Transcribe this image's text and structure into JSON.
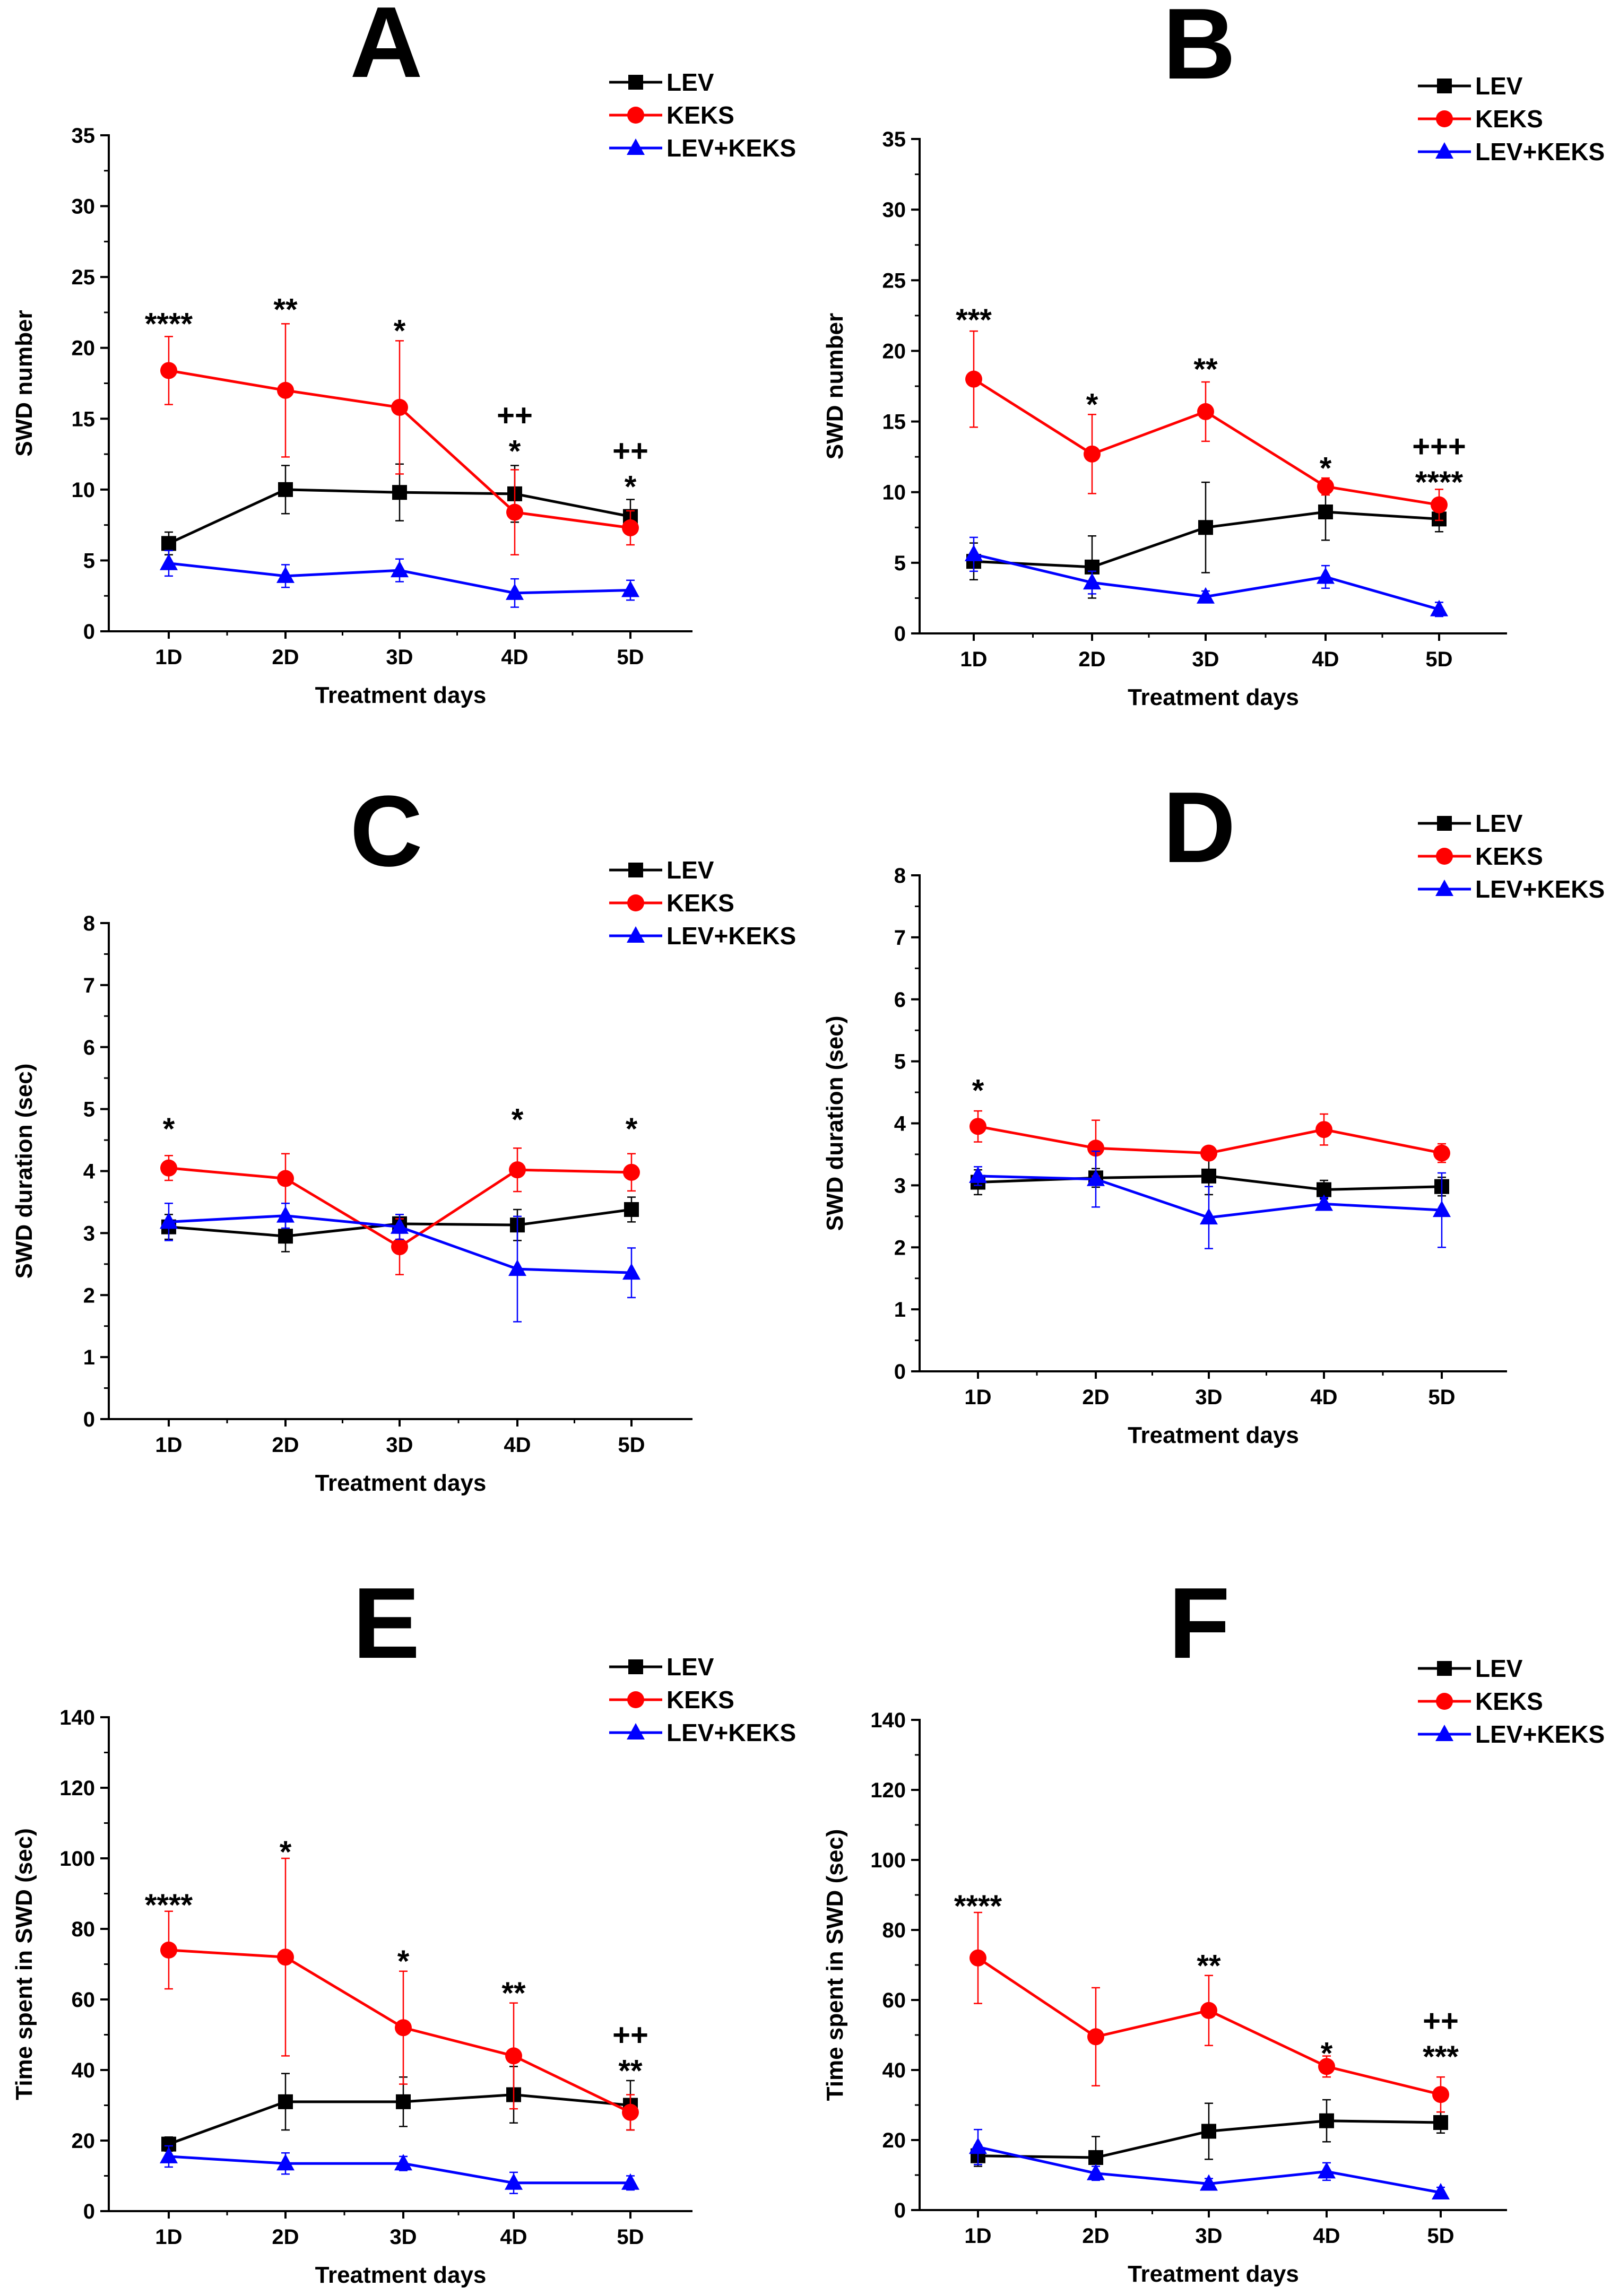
{
  "figure": {
    "description_title": ""
  },
  "legend_labels": [
    "LEV",
    "KEKS",
    "LEV+KEKS"
  ],
  "series_colors": {
    "LEV": "#000000",
    "KEKS": "#ff0000",
    "LEV+KEKS": "#0000ff"
  },
  "series_markers": {
    "LEV": "square",
    "KEKS": "circle",
    "LEV+KEKS": "triangle"
  },
  "chart_data": [
    {
      "panel": "A",
      "type": "line",
      "xlabel": "Treatment days",
      "ylabel": "SWD number",
      "categories": [
        "1D",
        "2D",
        "3D",
        "4D",
        "5D"
      ],
      "ylim": [
        0,
        35
      ],
      "yticks": [
        0,
        5,
        10,
        15,
        20,
        25,
        30,
        35
      ],
      "series": [
        {
          "name": "LEV",
          "values": [
            6.2,
            10.0,
            9.8,
            9.7,
            8.1
          ],
          "errors": [
            0.8,
            1.7,
            2.0,
            2.0,
            1.2
          ]
        },
        {
          "name": "KEKS",
          "values": [
            18.4,
            17.0,
            15.8,
            8.4,
            7.3
          ],
          "errors": [
            2.4,
            4.7,
            4.7,
            3.0,
            1.2
          ]
        },
        {
          "name": "LEV+KEKS",
          "values": [
            4.8,
            3.9,
            4.3,
            2.7,
            2.9
          ],
          "errors": [
            0.9,
            0.8,
            0.8,
            1.0,
            0.7
          ]
        }
      ],
      "annotations": [
        {
          "x": "1D",
          "lines": [
            "****"
          ],
          "y": 22
        },
        {
          "x": "2D",
          "lines": [
            "**"
          ],
          "y": 23
        },
        {
          "x": "3D",
          "lines": [
            "*"
          ],
          "y": 21.5
        },
        {
          "x": "4D",
          "lines": [
            "++",
            "*"
          ],
          "y": 13
        },
        {
          "x": "5D",
          "lines": [
            "++",
            "*"
          ],
          "y": 10.5
        }
      ]
    },
    {
      "panel": "B",
      "type": "line",
      "xlabel": "Treatment days",
      "ylabel": "SWD number",
      "categories": [
        "1D",
        "2D",
        "3D",
        "4D",
        "5D"
      ],
      "ylim": [
        0,
        35
      ],
      "yticks": [
        0,
        5,
        10,
        15,
        20,
        25,
        30,
        35
      ],
      "series": [
        {
          "name": "LEV",
          "values": [
            5.1,
            4.7,
            7.5,
            8.6,
            8.1
          ],
          "errors": [
            1.3,
            2.2,
            3.2,
            2.0,
            0.9
          ]
        },
        {
          "name": "KEKS",
          "values": [
            18.0,
            12.7,
            15.7,
            10.4,
            9.1
          ],
          "errors": [
            3.4,
            2.8,
            2.1,
            0.6,
            1.1
          ]
        },
        {
          "name": "LEV+KEKS",
          "values": [
            5.6,
            3.6,
            2.6,
            4.0,
            1.7
          ],
          "errors": [
            1.2,
            0.8,
            0.4,
            0.8,
            0.5
          ]
        }
      ],
      "annotations": [
        {
          "x": "1D",
          "lines": [
            "***"
          ],
          "y": 22.5
        },
        {
          "x": "2D",
          "lines": [
            "*"
          ],
          "y": 16.5
        },
        {
          "x": "3D",
          "lines": [
            "**"
          ],
          "y": 19
        },
        {
          "x": "4D",
          "lines": [
            "*"
          ],
          "y": 12
        },
        {
          "x": "5D",
          "lines": [
            "+++",
            "****"
          ],
          "y": 11
        }
      ]
    },
    {
      "panel": "C",
      "type": "line",
      "xlabel": "Treatment days",
      "ylabel": "SWD duration (sec)",
      "categories": [
        "1D",
        "2D",
        "3D",
        "4D",
        "5D"
      ],
      "ylim": [
        0,
        8
      ],
      "yticks": [
        0,
        1,
        2,
        3,
        4,
        5,
        6,
        7,
        8
      ],
      "series": [
        {
          "name": "LEV",
          "values": [
            3.1,
            2.95,
            3.15,
            3.13,
            3.38
          ],
          "errors": [
            0.2,
            0.25,
            0.15,
            0.25,
            0.2
          ]
        },
        {
          "name": "KEKS",
          "values": [
            4.05,
            3.88,
            2.78,
            4.02,
            3.98
          ],
          "errors": [
            0.2,
            0.4,
            0.45,
            0.35,
            0.3
          ]
        },
        {
          "name": "LEV+KEKS",
          "values": [
            3.18,
            3.28,
            3.1,
            2.42,
            2.36
          ],
          "errors": [
            0.3,
            0.2,
            0.2,
            0.85,
            0.4
          ]
        }
      ],
      "annotations": [
        {
          "x": "1D",
          "lines": [
            "*"
          ],
          "y": 4.75
        },
        {
          "x": "4D",
          "lines": [
            "*"
          ],
          "y": 4.9
        },
        {
          "x": "5D",
          "lines": [
            "*"
          ],
          "y": 4.75
        }
      ]
    },
    {
      "panel": "D",
      "type": "line",
      "xlabel": "Treatment days",
      "ylabel": "SWD duration (sec)",
      "categories": [
        "1D",
        "2D",
        "3D",
        "4D",
        "5D"
      ],
      "ylim": [
        0,
        8
      ],
      "yticks": [
        0,
        1,
        2,
        3,
        4,
        5,
        6,
        7,
        8
      ],
      "series": [
        {
          "name": "LEV",
          "values": [
            3.05,
            3.12,
            3.15,
            2.93,
            2.98
          ],
          "errors": [
            0.2,
            0.15,
            0.3,
            0.15,
            0.15
          ]
        },
        {
          "name": "KEKS",
          "values": [
            3.95,
            3.6,
            3.52,
            3.9,
            3.52
          ],
          "errors": [
            0.25,
            0.45,
            0.1,
            0.25,
            0.15
          ]
        },
        {
          "name": "LEV+KEKS",
          "values": [
            3.15,
            3.1,
            2.48,
            2.7,
            2.6
          ],
          "errors": [
            0.15,
            0.45,
            0.5,
            0.1,
            0.6
          ]
        }
      ],
      "annotations": [
        {
          "x": "1D",
          "lines": [
            "*"
          ],
          "y": 4.6
        }
      ]
    },
    {
      "panel": "E",
      "type": "line",
      "xlabel": "Treatment days",
      "ylabel": "Time spent in SWD (sec)",
      "categories": [
        "1D",
        "2D",
        "3D",
        "4D",
        "5D"
      ],
      "ylim": [
        0,
        140
      ],
      "yticks": [
        0,
        20,
        40,
        60,
        80,
        100,
        120,
        140
      ],
      "series": [
        {
          "name": "LEV",
          "values": [
            19,
            31,
            31,
            33,
            30
          ],
          "errors": [
            2,
            8,
            7,
            8,
            7
          ]
        },
        {
          "name": "KEKS",
          "values": [
            74,
            72,
            52,
            44,
            28
          ],
          "errors": [
            11,
            28,
            16,
            15,
            5
          ]
        },
        {
          "name": "LEV+KEKS",
          "values": [
            15.5,
            13.5,
            13.5,
            8,
            8
          ],
          "errors": [
            3,
            3,
            2,
            3,
            2
          ]
        }
      ],
      "annotations": [
        {
          "x": "1D",
          "lines": [
            "****"
          ],
          "y": 88
        },
        {
          "x": "2D",
          "lines": [
            "*"
          ],
          "y": 103
        },
        {
          "x": "3D",
          "lines": [
            "*"
          ],
          "y": 72
        },
        {
          "x": "4D",
          "lines": [
            "**"
          ],
          "y": 63
        },
        {
          "x": "5D",
          "lines": [
            "++",
            "**"
          ],
          "y": 41
        }
      ]
    },
    {
      "panel": "F",
      "type": "line",
      "xlabel": "Treatment days",
      "ylabel": "Time spent in SWD (sec)",
      "categories": [
        "1D",
        "2D",
        "3D",
        "4D",
        "5D"
      ],
      "ylim": [
        0,
        140
      ],
      "yticks": [
        0,
        20,
        40,
        60,
        80,
        100,
        120,
        140
      ],
      "series": [
        {
          "name": "LEV",
          "values": [
            15.5,
            15,
            22.5,
            25.5,
            25
          ],
          "errors": [
            3,
            6,
            8,
            6,
            3
          ]
        },
        {
          "name": "KEKS",
          "values": [
            72,
            49.5,
            57,
            41,
            33
          ],
          "errors": [
            13,
            14,
            10,
            3,
            5
          ]
        },
        {
          "name": "LEV+KEKS",
          "values": [
            18,
            10.5,
            7.5,
            11,
            5
          ],
          "errors": [
            5,
            2,
            1.5,
            2.5,
            1.5
          ]
        }
      ],
      "annotations": [
        {
          "x": "1D",
          "lines": [
            "****"
          ],
          "y": 88
        },
        {
          "x": "3D",
          "lines": [
            "**"
          ],
          "y": 71
        },
        {
          "x": "4D",
          "lines": [
            "*"
          ],
          "y": 46
        },
        {
          "x": "5D",
          "lines": [
            "++",
            "***"
          ],
          "y": 45
        }
      ]
    }
  ]
}
